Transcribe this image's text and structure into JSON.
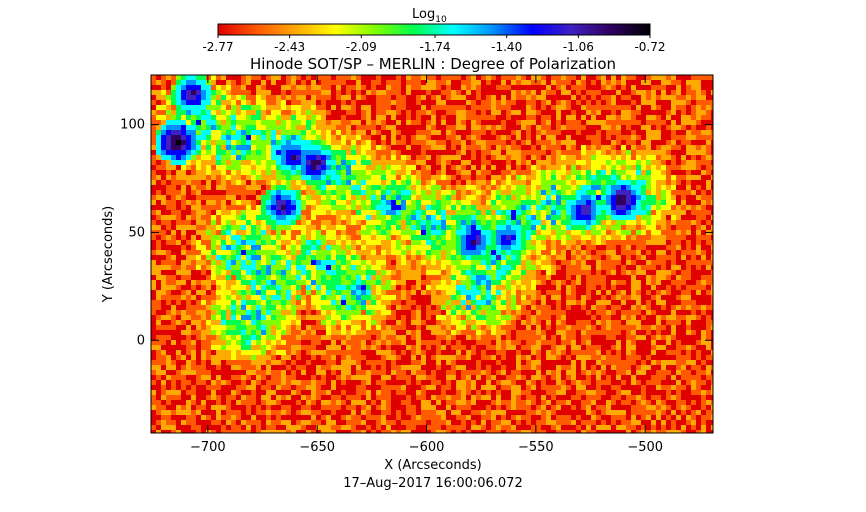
{
  "colorbar": {
    "label_base": "Log",
    "label_sub": "10",
    "tick_labels": [
      "-2.77",
      "-2.43",
      "-2.09",
      "-1.74",
      "-1.40",
      "-1.06",
      "-0.72"
    ],
    "tick_values": [
      -2.77,
      -2.43,
      -2.09,
      -1.74,
      -1.4,
      -1.06,
      -0.72
    ],
    "colors": [
      "#e00000",
      "#ff5a00",
      "#ffaa00",
      "#ffff00",
      "#80ff00",
      "#00ff50",
      "#00ffff",
      "#0090ff",
      "#0000ff",
      "#4020c0",
      "#300060",
      "#000000"
    ]
  },
  "chart_data": {
    "type": "heatmap",
    "title": "Hinode SOT/SP – MERLIN : Degree of Polarization",
    "xlabel": "X (Arcseconds)",
    "ylabel": "Y (Arcseconds)",
    "xlim": [
      -726,
      -469
    ],
    "ylim": [
      -43,
      123
    ],
    "x_ticks": [
      -700,
      -650,
      -600,
      -550,
      -500
    ],
    "y_ticks": [
      0,
      50,
      100
    ],
    "x_tick_labels": [
      "−700",
      "−650",
      "−600",
      "−550",
      "−500"
    ],
    "y_tick_labels": [
      "0",
      "50",
      "100"
    ],
    "value_range": [
      -2.77,
      -0.72
    ],
    "colorscale": "rainbow (red = low, black = high)",
    "high_polarization_regions": [
      {
        "x": -714,
        "y": 92,
        "log10_dop": -0.75
      },
      {
        "x": -707,
        "y": 114,
        "log10_dop": -0.95
      },
      {
        "x": -651,
        "y": 82,
        "log10_dop": -0.9
      },
      {
        "x": -661,
        "y": 85,
        "log10_dop": -1.0
      },
      {
        "x": -666,
        "y": 62,
        "log10_dop": -0.95
      },
      {
        "x": -510,
        "y": 65,
        "log10_dop": -0.85
      },
      {
        "x": -528,
        "y": 60,
        "log10_dop": -1.0
      },
      {
        "x": -578,
        "y": 46,
        "log10_dop": -1.0
      },
      {
        "x": -563,
        "y": 47,
        "log10_dop": -1.1
      }
    ],
    "footer": "17–Aug–2017 16:00:06.072"
  }
}
